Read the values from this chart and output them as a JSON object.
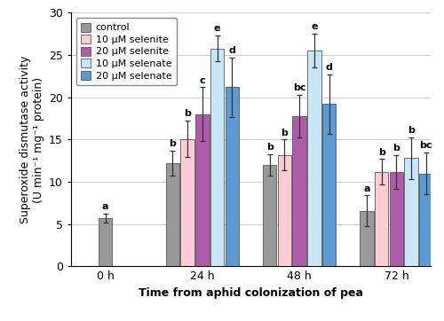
{
  "time_labels": [
    "0 h",
    "24 h",
    "48 h",
    "72 h"
  ],
  "series": [
    {
      "label": "control",
      "color": "#999999",
      "values": [
        5.7,
        12.2,
        12.0,
        6.6
      ],
      "errors": [
        0.5,
        1.5,
        1.3,
        1.8
      ],
      "letters": [
        "a",
        "b",
        "b",
        "a"
      ]
    },
    {
      "label": "10 μM selenite",
      "color": "#ffccd5",
      "values": [
        null,
        15.1,
        13.2,
        11.2
      ],
      "errors": [
        null,
        2.2,
        1.8,
        1.5
      ],
      "letters": [
        "",
        "b",
        "b",
        "b"
      ]
    },
    {
      "label": "20 μM selenite",
      "color": "#b05aaa",
      "values": [
        null,
        18.0,
        17.8,
        11.2
      ],
      "errors": [
        null,
        3.2,
        2.5,
        2.0
      ],
      "letters": [
        "",
        "c",
        "bc",
        "b"
      ]
    },
    {
      "label": "10 μM selenate",
      "color": "#c8e6f5",
      "values": [
        null,
        25.8,
        25.5,
        12.8
      ],
      "errors": [
        null,
        1.5,
        2.0,
        2.5
      ],
      "letters": [
        "",
        "e",
        "e",
        "b"
      ]
    },
    {
      "label": "20 μM selenate",
      "color": "#5b9bd5",
      "values": [
        null,
        21.2,
        19.2,
        11.0
      ],
      "errors": [
        null,
        3.5,
        3.5,
        2.5
      ],
      "letters": [
        "",
        "d",
        "d",
        "bc"
      ]
    }
  ],
  "ylabel": "Superoxide dismutase activity\n(U min⁻¹ mg⁻¹ protein)",
  "xlabel": "Time from aphid colonization of pea",
  "ylim": [
    0,
    30
  ],
  "yticks": [
    0,
    5,
    10,
    15,
    20,
    25,
    30
  ],
  "bar_width": 0.13,
  "group_positions": [
    0.3,
    1.15,
    2.0,
    2.85
  ],
  "letter_fontsize": 8,
  "legend_fontsize": 8,
  "axis_fontsize": 9,
  "tick_fontsize": 9,
  "background_color": "#ffffff"
}
